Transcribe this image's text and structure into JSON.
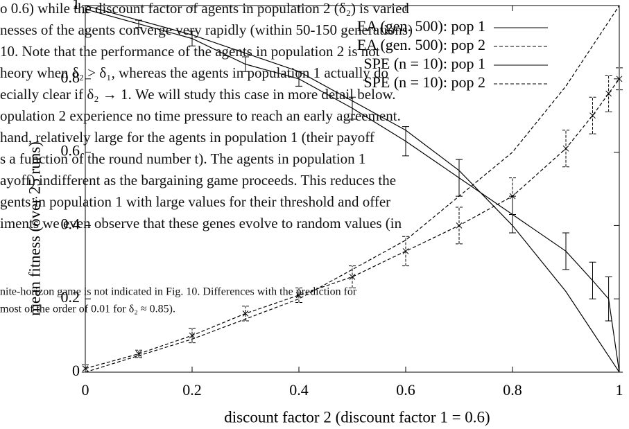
{
  "page_text": {
    "lines": [
      "o 0.6) while the discount factor of agents in population 2 (δ₂) is varied",
      "nesses of the agents converge very rapidly (within 50-150 generations)",
      "10. Note that the performance of the agents in population 2 is not",
      "heory when δ₂ > δ₁, whereas the agents in population 1 actually do",
      "ecially clear if δ₂ → 1. We will study this case in more detail below.",
      "opulation 2 experience no time pressure to reach an early agreement.",
      "hand, relatively large for the agents in population 1 (their payoff",
      "s a function of the round number t). The agents in population 1",
      "ayoff) indifferent as the bargaining game proceeds. This reduces the",
      "gents in population 1 with large values for their threshold and offer",
      "iments we even observe that these genes evolve to random values (in"
    ],
    "footnote": [
      "nite-horizon game is not indicated in Fig. 10. Differences with the prediction for",
      "most of the order of 0.01 for δ₂ ≈ 0.85)."
    ]
  },
  "chart_data": {
    "type": "line",
    "xlabel": "discount factor 2 (discount factor 1 = 0.6)",
    "ylabel": "mean fitness (over 25 runs)",
    "xlim": [
      0,
      1
    ],
    "ylim": [
      0,
      1
    ],
    "xticks": [
      0,
      0.2,
      0.4,
      0.6,
      0.8,
      1
    ],
    "yticks": [
      0,
      0.2,
      0.4,
      0.6,
      0.8,
      1
    ],
    "legend": "upper right",
    "series": [
      {
        "name": "EA (gen. 500): pop 1",
        "color": "#000000",
        "style": "solid",
        "x": [
          0,
          0.1,
          0.2,
          0.3,
          0.4,
          0.5,
          0.6,
          0.7,
          0.8,
          0.9,
          0.95,
          0.98,
          1
        ],
        "values": [
          0.99,
          0.95,
          0.91,
          0.84,
          0.8,
          0.72,
          0.63,
          0.53,
          0.43,
          0.33,
          0.25,
          0.2,
          0.0
        ],
        "errors": [
          0.01,
          0.01,
          0.02,
          0.02,
          0.02,
          0.03,
          0.04,
          0.05,
          0.05,
          0.05,
          0.05,
          0.06,
          0.0
        ]
      },
      {
        "name": "EA (gen. 500): pop 2",
        "color": "#000000",
        "style": "dashed",
        "x": [
          0,
          0.1,
          0.2,
          0.3,
          0.4,
          0.5,
          0.6,
          0.7,
          0.8,
          0.9,
          0.95,
          0.98,
          1
        ],
        "values": [
          0.01,
          0.05,
          0.1,
          0.16,
          0.21,
          0.26,
          0.33,
          0.4,
          0.48,
          0.61,
          0.7,
          0.76,
          0.8
        ],
        "errors": [
          0.01,
          0.01,
          0.02,
          0.02,
          0.02,
          0.03,
          0.04,
          0.05,
          0.05,
          0.05,
          0.05,
          0.05,
          0.03
        ]
      },
      {
        "name": "SPE (n = 10): pop 1",
        "color": "#000000",
        "style": "solid",
        "x": [
          0,
          0.2,
          0.4,
          0.6,
          0.7,
          0.8,
          0.9,
          1
        ],
        "values": [
          1.0,
          0.92,
          0.82,
          0.66,
          0.55,
          0.4,
          0.22,
          0.0
        ]
      },
      {
        "name": "SPE (n = 10): pop 2",
        "color": "#000000",
        "style": "dashed",
        "x": [
          0,
          0.2,
          0.4,
          0.6,
          0.8,
          0.9,
          1
        ],
        "values": [
          0.0,
          0.09,
          0.2,
          0.36,
          0.6,
          0.78,
          1.0
        ]
      }
    ]
  }
}
